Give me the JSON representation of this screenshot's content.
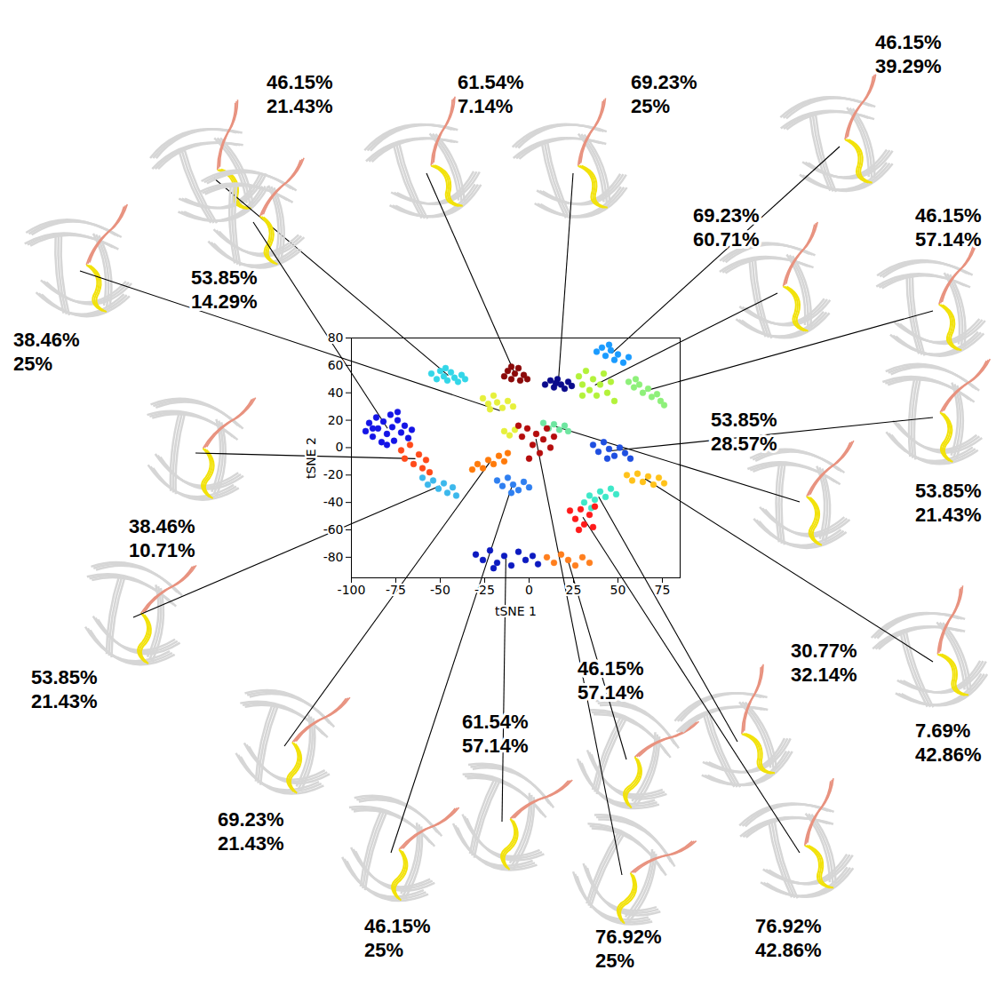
{
  "chart_data": {
    "type": "scatter",
    "xlabel": "tSNE 1",
    "ylabel": "tSNE 2",
    "xlim": [
      -100,
      85
    ],
    "ylim": [
      -95,
      80
    ],
    "xticks": [
      -100,
      -75,
      -50,
      -25,
      0,
      25,
      50,
      75
    ],
    "yticks": [
      -80,
      -60,
      -40,
      -20,
      0,
      20,
      40,
      60,
      80
    ],
    "series": [
      {
        "color": "#33d6e8",
        "annotation": [
          "46.15%",
          "21.43%"
        ],
        "points": [
          [
            -55,
            54
          ],
          [
            -52,
            50
          ],
          [
            -50,
            56
          ],
          [
            -48,
            52
          ],
          [
            -46,
            49
          ],
          [
            -44,
            55
          ],
          [
            -42,
            51
          ],
          [
            -40,
            48
          ],
          [
            -38,
            53
          ],
          [
            -36,
            50
          ],
          [
            -47,
            58
          ]
        ]
      },
      {
        "color": "#8b0a0a",
        "annotation": [
          "61.54%",
          "7.14%"
        ],
        "points": [
          [
            -14,
            52
          ],
          [
            -12,
            56
          ],
          [
            -10,
            50
          ],
          [
            -8,
            54
          ],
          [
            -6,
            58
          ],
          [
            -5,
            49
          ],
          [
            -3,
            53
          ],
          [
            -1,
            50
          ],
          [
            -10,
            59
          ]
        ]
      },
      {
        "color": "#0a0a8c",
        "annotation": [
          "69.23%",
          "25%"
        ],
        "points": [
          [
            9,
            46
          ],
          [
            12,
            49
          ],
          [
            14,
            44
          ],
          [
            16,
            50
          ],
          [
            18,
            46
          ],
          [
            20,
            43
          ],
          [
            22,
            48
          ],
          [
            24,
            45
          ],
          [
            15,
            47
          ]
        ]
      },
      {
        "color": "#1a9bff",
        "annotation": [
          "46.15%",
          "39.29%"
        ],
        "points": [
          [
            38,
            70
          ],
          [
            41,
            73
          ],
          [
            43,
            67
          ],
          [
            46,
            71
          ],
          [
            48,
            64
          ],
          [
            50,
            68
          ],
          [
            53,
            62
          ],
          [
            56,
            66
          ],
          [
            45,
            75
          ]
        ]
      },
      {
        "color": "#b3f23a",
        "annotation": [
          "69.23%",
          "60.71%"
        ],
        "points": [
          [
            28,
            52
          ],
          [
            30,
            46
          ],
          [
            32,
            56
          ],
          [
            34,
            42
          ],
          [
            36,
            50
          ],
          [
            38,
            38
          ],
          [
            40,
            46
          ],
          [
            42,
            54
          ],
          [
            44,
            40
          ],
          [
            46,
            48
          ],
          [
            30,
            38
          ],
          [
            48,
            34
          ]
        ]
      },
      {
        "color": "#8ef07a",
        "annotation": [
          "46.15%",
          "57.14%"
        ],
        "points": [
          [
            56,
            48
          ],
          [
            59,
            44
          ],
          [
            62,
            46
          ],
          [
            64,
            40
          ],
          [
            67,
            43
          ],
          [
            69,
            37
          ],
          [
            72,
            39
          ],
          [
            74,
            34
          ],
          [
            76,
            31
          ],
          [
            60,
            50
          ]
        ]
      },
      {
        "color": "#e6f03c",
        "annotation": [
          "38.46%",
          "25%"
        ],
        "points": [
          [
            -26,
            36
          ],
          [
            -23,
            32
          ],
          [
            -20,
            38
          ],
          [
            -18,
            33
          ],
          [
            -15,
            29
          ],
          [
            -12,
            34
          ],
          [
            -9,
            30
          ],
          [
            -22,
            28
          ],
          [
            -14,
            12
          ],
          [
            -11,
            9
          ],
          [
            -8,
            13
          ]
        ]
      },
      {
        "color": "#1414e6",
        "annotation": [
          "53.85%",
          "14.29%"
        ],
        "points": [
          [
            -92,
            12
          ],
          [
            -90,
            18
          ],
          [
            -88,
            8
          ],
          [
            -86,
            22
          ],
          [
            -85,
            14
          ],
          [
            -83,
            4
          ],
          [
            -82,
            19
          ],
          [
            -80,
            10
          ],
          [
            -78,
            24
          ],
          [
            -77,
            15
          ],
          [
            -76,
            5
          ],
          [
            -74,
            20
          ],
          [
            -72,
            11
          ],
          [
            -70,
            16
          ],
          [
            -68,
            7
          ],
          [
            -66,
            13
          ],
          [
            -88,
            14
          ],
          [
            -80,
            2
          ],
          [
            -74,
            26
          ]
        ]
      },
      {
        "color": "#6ee6a0",
        "annotation": [
          "53.85%",
          "28.57%"
        ],
        "points": [
          [
            8,
            18
          ],
          [
            11,
            14
          ],
          [
            14,
            17
          ],
          [
            17,
            13
          ],
          [
            20,
            16
          ],
          [
            22,
            12
          ]
        ]
      },
      {
        "color": "#1f4fe0",
        "annotation": [
          "53.85%",
          "21.43%"
        ],
        "points": [
          [
            36,
            2
          ],
          [
            39,
            -3
          ],
          [
            42,
            4
          ],
          [
            45,
            -1
          ],
          [
            48,
            -6
          ],
          [
            51,
            0
          ],
          [
            54,
            -4
          ],
          [
            57,
            -8
          ],
          [
            44,
            -8
          ]
        ]
      },
      {
        "color": "#ff4a1a",
        "annotation": [
          "38.46%",
          "10.71%"
        ],
        "points": [
          [
            -72,
            -2
          ],
          [
            -70,
            -8
          ],
          [
            -67,
            2
          ],
          [
            -65,
            -12
          ],
          [
            -62,
            -5
          ],
          [
            -60,
            -15
          ],
          [
            -58,
            -9
          ],
          [
            -56,
            -18
          ]
        ]
      },
      {
        "color": "#3cb8ec",
        "annotation": [
          "53.85%",
          "21.43%"
        ],
        "points": [
          [
            -60,
            -22
          ],
          [
            -57,
            -27
          ],
          [
            -54,
            -24
          ],
          [
            -51,
            -30
          ],
          [
            -48,
            -26
          ],
          [
            -46,
            -33
          ],
          [
            -43,
            -29
          ],
          [
            -41,
            -35
          ]
        ]
      },
      {
        "color": "#ff7a0a",
        "annotation": [
          "69.23%",
          "21.43%"
        ],
        "points": [
          [
            -32,
            -16
          ],
          [
            -29,
            -12
          ],
          [
            -26,
            -15
          ],
          [
            -23,
            -9
          ],
          [
            -20,
            -12
          ],
          [
            -17,
            -6
          ],
          [
            -14,
            -10
          ],
          [
            -12,
            -4
          ]
        ]
      },
      {
        "color": "#2e7ff0",
        "annotation": [
          "46.15%",
          "25%"
        ],
        "points": [
          [
            -18,
            -24
          ],
          [
            -15,
            -28
          ],
          [
            -12,
            -22
          ],
          [
            -9,
            -27
          ],
          [
            -6,
            -31
          ],
          [
            -3,
            -25
          ],
          [
            0,
            -29
          ],
          [
            -10,
            -33
          ]
        ]
      },
      {
        "color": "#0c1ac0",
        "annotation": [
          "61.54%",
          "57.14%"
        ],
        "points": [
          [
            -30,
            -78
          ],
          [
            -26,
            -82
          ],
          [
            -22,
            -75
          ],
          [
            -18,
            -84
          ],
          [
            -14,
            -79
          ],
          [
            -10,
            -86
          ],
          [
            -6,
            -76
          ],
          [
            -2,
            -82
          ],
          [
            2,
            -79
          ],
          [
            5,
            -85
          ],
          [
            -20,
            -88
          ]
        ]
      },
      {
        "color": "#ff7f1e",
        "annotation": [
          "46.15%",
          "57.14%"
        ],
        "points": [
          [
            10,
            -80
          ],
          [
            14,
            -84
          ],
          [
            18,
            -78
          ],
          [
            22,
            -82
          ],
          [
            26,
            -86
          ],
          [
            30,
            -80
          ],
          [
            34,
            -84
          ]
        ]
      },
      {
        "color": "#b50d0d",
        "annotation": [
          "76.92%",
          "25%"
        ],
        "points": [
          [
            -4,
            8
          ],
          [
            -1,
            14
          ],
          [
            2,
            2
          ],
          [
            4,
            10
          ],
          [
            6,
            -4
          ],
          [
            8,
            6
          ],
          [
            10,
            14
          ],
          [
            12,
            0
          ],
          [
            14,
            8
          ],
          [
            0,
            -8
          ],
          [
            -6,
            16
          ]
        ]
      },
      {
        "color": "#3ee8c8",
        "annotation": [
          "30.77%",
          "32.14%"
        ],
        "points": [
          [
            31,
            -40
          ],
          [
            34,
            -35
          ],
          [
            37,
            -38
          ],
          [
            40,
            -32
          ],
          [
            43,
            -36
          ],
          [
            46,
            -30
          ],
          [
            49,
            -34
          ],
          [
            35,
            -44
          ]
        ]
      },
      {
        "color": "#ffc21a",
        "annotation": [
          "7.69%",
          "42.86%"
        ],
        "points": [
          [
            55,
            -20
          ],
          [
            58,
            -24
          ],
          [
            61,
            -19
          ],
          [
            64,
            -25
          ],
          [
            67,
            -21
          ],
          [
            70,
            -27
          ],
          [
            73,
            -22
          ],
          [
            76,
            -26
          ]
        ]
      },
      {
        "color": "#ff1a1a",
        "annotation": [
          "76.92%",
          "42.86%"
        ],
        "points": [
          [
            23,
            -46
          ],
          [
            26,
            -52
          ],
          [
            29,
            -45
          ],
          [
            31,
            -56
          ],
          [
            34,
            -49
          ],
          [
            36,
            -58
          ],
          [
            28,
            -60
          ],
          [
            37,
            -43
          ]
        ]
      }
    ]
  }
}
